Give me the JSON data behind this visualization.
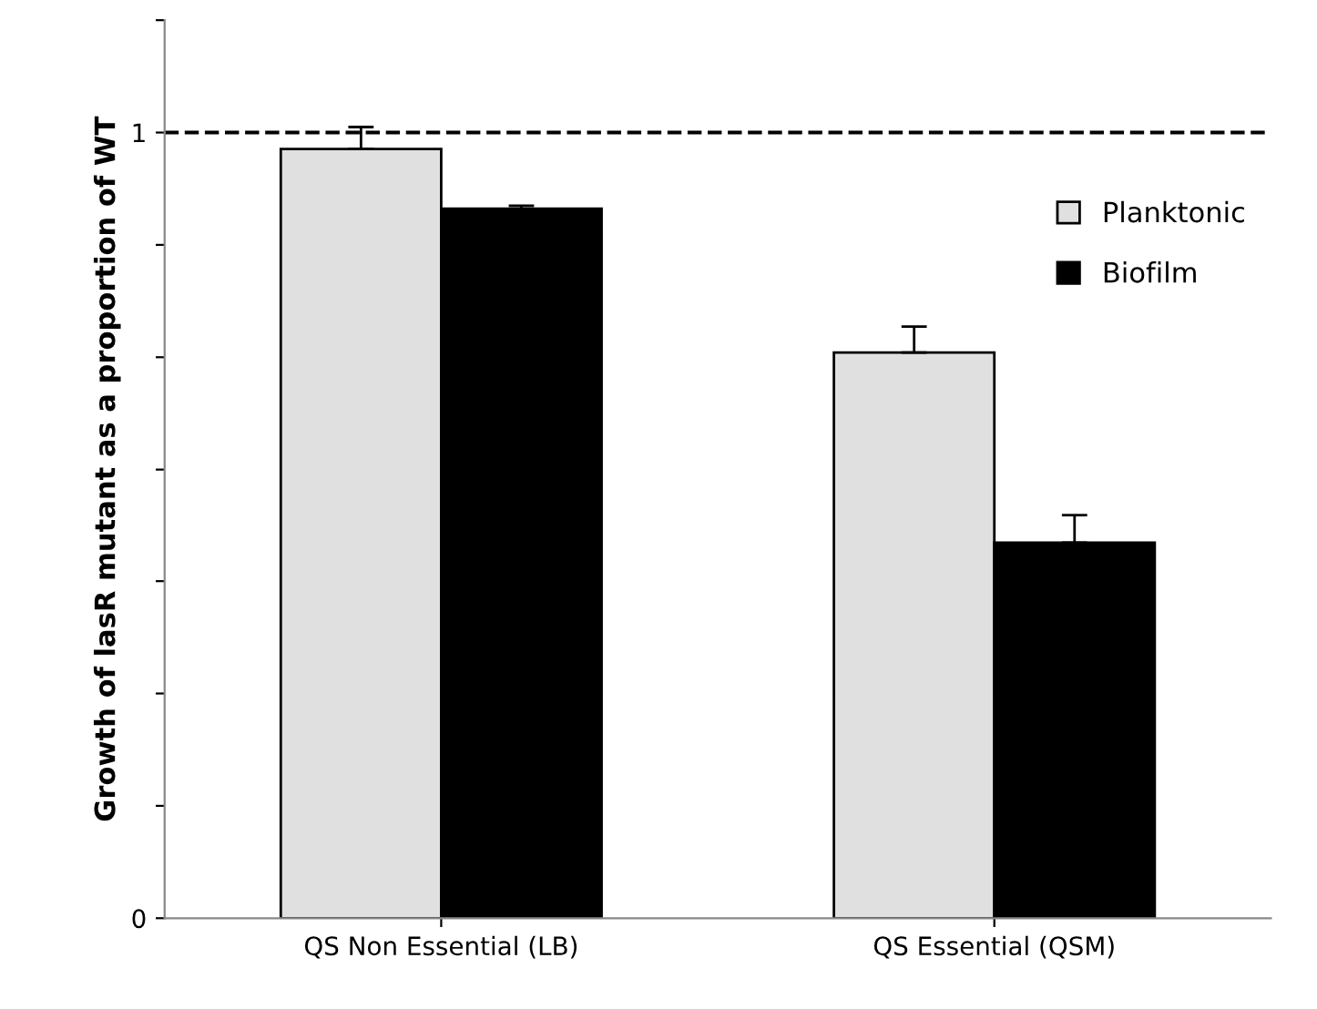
{
  "chart_data": {
    "type": "bar",
    "ylabel": "Growth of lasR mutant as a proportion of WT",
    "categories": [
      "QS Non Essential (LB)",
      "QS Essential (QSM)"
    ],
    "series": [
      {
        "name": "Planktonic",
        "color": "#e0e0e0",
        "values": [
          0.979,
          0.72
        ],
        "errors": [
          0.028,
          0.033
        ]
      },
      {
        "name": "Biofilm",
        "color": "#000000",
        "values": [
          0.903,
          0.478
        ],
        "errors": [
          0.004,
          0.035
        ]
      }
    ],
    "ylim": [
      0,
      1.143
    ],
    "yticks": [
      0,
      {
        "value": 0.143,
        "label": null
      },
      {
        "value": 0.286,
        "label": null
      },
      {
        "value": 0.429,
        "label": null
      },
      {
        "value": 0.571,
        "label": null
      },
      {
        "value": 0.714,
        "label": null
      },
      {
        "value": 0.857,
        "label": null
      },
      1,
      {
        "value": 1.143,
        "label": null
      }
    ],
    "ref_lines": [
      {
        "axis": "y",
        "value": 1,
        "line_style": "dashed",
        "color": "#000000"
      }
    ],
    "grid": false,
    "legend": "right"
  }
}
